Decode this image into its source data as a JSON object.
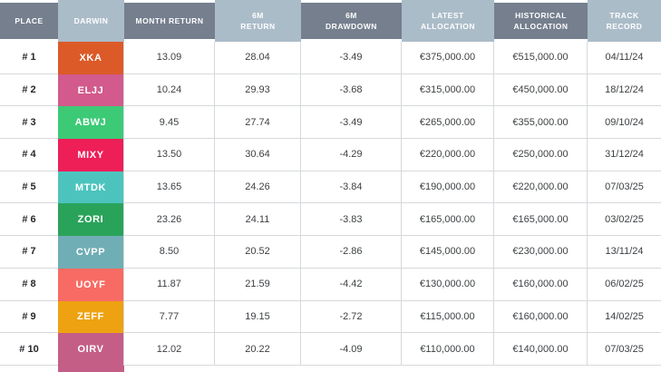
{
  "colors": {
    "header_dark": "#757f8e",
    "header_light": "#abbcc9",
    "row_border": "#d6d9dc",
    "header_text": "#ffffff",
    "body_text": "#3d4043"
  },
  "table": {
    "columns": [
      {
        "key": "place",
        "label": "PLACE",
        "shade": "dark"
      },
      {
        "key": "darwin",
        "label": "DARWIN",
        "shade": "light"
      },
      {
        "key": "month_return",
        "label": "MONTH RETURN",
        "shade": "dark"
      },
      {
        "key": "return_6m",
        "label": "6M\nRETURN",
        "shade": "light"
      },
      {
        "key": "drawdown_6m",
        "label": "6M\nDRAWDOWN",
        "shade": "dark"
      },
      {
        "key": "latest_allocation",
        "label": "LATEST\nALLOCATION",
        "shade": "light"
      },
      {
        "key": "historical_allocation",
        "label": "HISTORICAL\nALLOCATION",
        "shade": "dark"
      },
      {
        "key": "track_record",
        "label": "TRACK RECORD",
        "shade": "light"
      }
    ],
    "rows": [
      {
        "place": "# 1",
        "darwin": "XKA",
        "color": "#dc5a28",
        "month_return": "13.09",
        "return_6m": "28.04",
        "drawdown_6m": "-3.49",
        "latest_allocation": "€375,000.00",
        "historical_allocation": "€515,000.00",
        "track_record": "04/11/24"
      },
      {
        "place": "# 2",
        "darwin": "ELJJ",
        "color": "#d25a8c",
        "month_return": "10.24",
        "return_6m": "29.93",
        "drawdown_6m": "-3.68",
        "latest_allocation": "€315,000.00",
        "historical_allocation": "€450,000.00",
        "track_record": "18/12/24"
      },
      {
        "place": "# 3",
        "darwin": "ABWJ",
        "color": "#3dca77",
        "month_return": "9.45",
        "return_6m": "27.74",
        "drawdown_6m": "-3.49",
        "latest_allocation": "€265,000.00",
        "historical_allocation": "€355,000.00",
        "track_record": "09/10/24"
      },
      {
        "place": "# 4",
        "darwin": "MIXY",
        "color": "#ee1e57",
        "month_return": "13.50",
        "return_6m": "30.64",
        "drawdown_6m": "-4.29",
        "latest_allocation": "€220,000.00",
        "historical_allocation": "€250,000.00",
        "track_record": "31/12/24"
      },
      {
        "place": "# 5",
        "darwin": "MTDK",
        "color": "#4cc4bd",
        "month_return": "13.65",
        "return_6m": "24.26",
        "drawdown_6m": "-3.84",
        "latest_allocation": "€190,000.00",
        "historical_allocation": "€220,000.00",
        "track_record": "07/03/25"
      },
      {
        "place": "# 6",
        "darwin": "ZORI",
        "color": "#2aa35a",
        "month_return": "23.26",
        "return_6m": "24.11",
        "drawdown_6m": "-3.83",
        "latest_allocation": "€165,000.00",
        "historical_allocation": "€165,000.00",
        "track_record": "03/02/25"
      },
      {
        "place": "# 7",
        "darwin": "CVPP",
        "color": "#70aeb5",
        "month_return": "8.50",
        "return_6m": "20.52",
        "drawdown_6m": "-2.86",
        "latest_allocation": "€145,000.00",
        "historical_allocation": "€230,000.00",
        "track_record": "13/11/24"
      },
      {
        "place": "# 8",
        "darwin": "UOYF",
        "color": "#f86b64",
        "month_return": "11.87",
        "return_6m": "21.59",
        "drawdown_6m": "-4.42",
        "latest_allocation": "€130,000.00",
        "historical_allocation": "€160,000.00",
        "track_record": "06/02/25"
      },
      {
        "place": "# 9",
        "darwin": "ZEFF",
        "color": "#eea211",
        "month_return": "7.77",
        "return_6m": "19.15",
        "drawdown_6m": "-2.72",
        "latest_allocation": "€115,000.00",
        "historical_allocation": "€160,000.00",
        "track_record": "14/02/25"
      },
      {
        "place": "# 10",
        "darwin": "OIRV",
        "color": "#c55e86",
        "month_return": "12.02",
        "return_6m": "20.22",
        "drawdown_6m": "-4.09",
        "latest_allocation": "€110,000.00",
        "historical_allocation": "€140,000.00",
        "track_record": "07/03/25"
      }
    ]
  }
}
